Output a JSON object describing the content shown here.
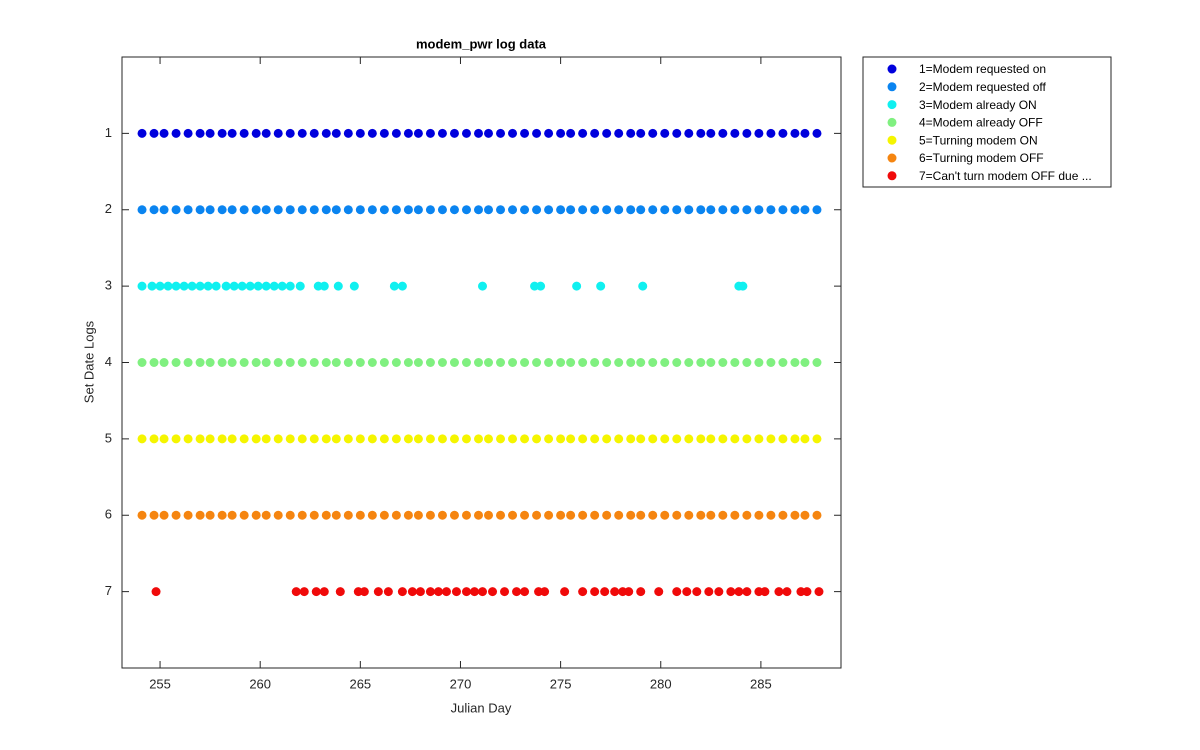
{
  "chart_data": {
    "type": "scatter",
    "title": "modem_pwr log data",
    "x_label": "Julian Day",
    "y_label": "Set Date Logs",
    "xlim": [
      253.1,
      289
    ],
    "xticks": [
      255,
      260,
      265,
      270,
      275,
      280,
      285
    ],
    "ylim": [
      0,
      8
    ],
    "yticks": [
      1,
      2,
      3,
      4,
      5,
      6,
      7
    ],
    "y_reverse": true,
    "legend": "outside-right",
    "series": [
      {
        "name": "1=Modem requested on",
        "color": "#0000dd",
        "x": [
          254.1,
          254.7,
          255.2,
          255.8,
          256.4,
          257.0,
          257.5,
          258.1,
          258.6,
          259.2,
          259.8,
          260.3,
          260.9,
          261.5,
          262.1,
          262.7,
          263.3,
          263.8,
          264.4,
          265.0,
          265.6,
          266.2,
          266.8,
          267.4,
          267.9,
          268.5,
          269.1,
          269.7,
          270.3,
          270.9,
          271.4,
          272.0,
          272.6,
          273.2,
          273.8,
          274.4,
          275.0,
          275.5,
          276.1,
          276.7,
          277.3,
          277.9,
          278.5,
          279.0,
          279.6,
          280.2,
          280.8,
          281.4,
          282.0,
          282.5,
          283.1,
          283.7,
          284.3,
          284.9,
          285.5,
          286.1,
          286.7,
          287.2,
          287.8
        ],
        "values": [
          1,
          1,
          1,
          1,
          1,
          1,
          1,
          1,
          1,
          1,
          1,
          1,
          1,
          1,
          1,
          1,
          1,
          1,
          1,
          1,
          1,
          1,
          1,
          1,
          1,
          1,
          1,
          1,
          1,
          1,
          1,
          1,
          1,
          1,
          1,
          1,
          1,
          1,
          1,
          1,
          1,
          1,
          1,
          1,
          1,
          1,
          1,
          1,
          1,
          1,
          1,
          1,
          1,
          1,
          1,
          1,
          1,
          1,
          1
        ]
      },
      {
        "name": "2=Modem requested off",
        "color": "#0a84f0",
        "x": [
          254.1,
          254.7,
          255.2,
          255.8,
          256.4,
          257.0,
          257.5,
          258.1,
          258.6,
          259.2,
          259.8,
          260.3,
          260.9,
          261.5,
          262.1,
          262.7,
          263.3,
          263.8,
          264.4,
          265.0,
          265.6,
          266.2,
          266.8,
          267.4,
          267.9,
          268.5,
          269.1,
          269.7,
          270.3,
          270.9,
          271.4,
          272.0,
          272.6,
          273.2,
          273.8,
          274.4,
          275.0,
          275.5,
          276.1,
          276.7,
          277.3,
          277.9,
          278.5,
          279.0,
          279.6,
          280.2,
          280.8,
          281.4,
          282.0,
          282.5,
          283.1,
          283.7,
          284.3,
          284.9,
          285.5,
          286.1,
          286.7,
          287.2,
          287.8
        ],
        "values": [
          2,
          2,
          2,
          2,
          2,
          2,
          2,
          2,
          2,
          2,
          2,
          2,
          2,
          2,
          2,
          2,
          2,
          2,
          2,
          2,
          2,
          2,
          2,
          2,
          2,
          2,
          2,
          2,
          2,
          2,
          2,
          2,
          2,
          2,
          2,
          2,
          2,
          2,
          2,
          2,
          2,
          2,
          2,
          2,
          2,
          2,
          2,
          2,
          2,
          2,
          2,
          2,
          2,
          2,
          2,
          2,
          2,
          2,
          2
        ]
      },
      {
        "name": "3=Modem already ON",
        "color": "#10f0f0",
        "x": [
          254.1,
          254.6,
          255.0,
          255.4,
          255.8,
          256.2,
          256.6,
          257.0,
          257.4,
          257.8,
          258.3,
          258.7,
          259.1,
          259.5,
          259.9,
          260.3,
          260.7,
          261.1,
          261.5,
          262.0,
          262.9,
          263.2,
          263.9,
          264.7,
          266.7,
          267.1,
          271.1,
          273.7,
          274.0,
          275.8,
          277.0,
          279.1,
          283.9,
          284.1
        ],
        "values": [
          3,
          3,
          3,
          3,
          3,
          3,
          3,
          3,
          3,
          3,
          3,
          3,
          3,
          3,
          3,
          3,
          3,
          3,
          3,
          3,
          3,
          3,
          3,
          3,
          3,
          3,
          3,
          3,
          3,
          3,
          3,
          3,
          3,
          3
        ]
      },
      {
        "name": "4=Modem already OFF",
        "color": "#80f080",
        "x": [
          254.1,
          254.7,
          255.2,
          255.8,
          256.4,
          257.0,
          257.5,
          258.1,
          258.6,
          259.2,
          259.8,
          260.3,
          260.9,
          261.5,
          262.1,
          262.7,
          263.3,
          263.8,
          264.4,
          265.0,
          265.6,
          266.2,
          266.8,
          267.4,
          267.9,
          268.5,
          269.1,
          269.7,
          270.3,
          270.9,
          271.4,
          272.0,
          272.6,
          273.2,
          273.8,
          274.4,
          275.0,
          275.5,
          276.1,
          276.7,
          277.3,
          277.9,
          278.5,
          279.0,
          279.6,
          280.2,
          280.8,
          281.4,
          282.0,
          282.5,
          283.1,
          283.7,
          284.3,
          284.9,
          285.5,
          286.1,
          286.7,
          287.2,
          287.8
        ],
        "values": [
          4,
          4,
          4,
          4,
          4,
          4,
          4,
          4,
          4,
          4,
          4,
          4,
          4,
          4,
          4,
          4,
          4,
          4,
          4,
          4,
          4,
          4,
          4,
          4,
          4,
          4,
          4,
          4,
          4,
          4,
          4,
          4,
          4,
          4,
          4,
          4,
          4,
          4,
          4,
          4,
          4,
          4,
          4,
          4,
          4,
          4,
          4,
          4,
          4,
          4,
          4,
          4,
          4,
          4,
          4,
          4,
          4,
          4,
          4
        ]
      },
      {
        "name": "5=Turning modem ON",
        "color": "#f5f500",
        "x": [
          254.1,
          254.7,
          255.2,
          255.8,
          256.4,
          257.0,
          257.5,
          258.1,
          258.6,
          259.2,
          259.8,
          260.3,
          260.9,
          261.5,
          262.1,
          262.7,
          263.3,
          263.8,
          264.4,
          265.0,
          265.6,
          266.2,
          266.8,
          267.4,
          267.9,
          268.5,
          269.1,
          269.7,
          270.3,
          270.9,
          271.4,
          272.0,
          272.6,
          273.2,
          273.8,
          274.4,
          275.0,
          275.5,
          276.1,
          276.7,
          277.3,
          277.9,
          278.5,
          279.0,
          279.6,
          280.2,
          280.8,
          281.4,
          282.0,
          282.5,
          283.1,
          283.7,
          284.3,
          284.9,
          285.5,
          286.1,
          286.7,
          287.2,
          287.8
        ],
        "values": [
          5,
          5,
          5,
          5,
          5,
          5,
          5,
          5,
          5,
          5,
          5,
          5,
          5,
          5,
          5,
          5,
          5,
          5,
          5,
          5,
          5,
          5,
          5,
          5,
          5,
          5,
          5,
          5,
          5,
          5,
          5,
          5,
          5,
          5,
          5,
          5,
          5,
          5,
          5,
          5,
          5,
          5,
          5,
          5,
          5,
          5,
          5,
          5,
          5,
          5,
          5,
          5,
          5,
          5,
          5,
          5,
          5,
          5,
          5
        ]
      },
      {
        "name": "6=Turning modem OFF",
        "color": "#f58510",
        "x": [
          254.1,
          254.7,
          255.2,
          255.8,
          256.4,
          257.0,
          257.5,
          258.1,
          258.6,
          259.2,
          259.8,
          260.3,
          260.9,
          261.5,
          262.1,
          262.7,
          263.3,
          263.8,
          264.4,
          265.0,
          265.6,
          266.2,
          266.8,
          267.4,
          267.9,
          268.5,
          269.1,
          269.7,
          270.3,
          270.9,
          271.4,
          272.0,
          272.6,
          273.2,
          273.8,
          274.4,
          275.0,
          275.5,
          276.1,
          276.7,
          277.3,
          277.9,
          278.5,
          279.0,
          279.6,
          280.2,
          280.8,
          281.4,
          282.0,
          282.5,
          283.1,
          283.7,
          284.3,
          284.9,
          285.5,
          286.1,
          286.7,
          287.2,
          287.8
        ],
        "values": [
          6,
          6,
          6,
          6,
          6,
          6,
          6,
          6,
          6,
          6,
          6,
          6,
          6,
          6,
          6,
          6,
          6,
          6,
          6,
          6,
          6,
          6,
          6,
          6,
          6,
          6,
          6,
          6,
          6,
          6,
          6,
          6,
          6,
          6,
          6,
          6,
          6,
          6,
          6,
          6,
          6,
          6,
          6,
          6,
          6,
          6,
          6,
          6,
          6,
          6,
          6,
          6,
          6,
          6,
          6,
          6,
          6,
          6,
          6
        ]
      },
      {
        "name": "7=Can't turn modem OFF due  ...",
        "color": "#f00a0a",
        "x": [
          254.8,
          261.8,
          262.2,
          262.8,
          263.2,
          264.0,
          264.9,
          265.2,
          265.9,
          266.4,
          267.1,
          267.6,
          268.0,
          268.5,
          268.9,
          269.3,
          269.8,
          270.3,
          270.7,
          271.1,
          271.6,
          272.2,
          272.8,
          273.2,
          273.9,
          274.2,
          275.2,
          276.1,
          276.7,
          277.2,
          277.7,
          278.1,
          278.4,
          279.0,
          279.9,
          280.8,
          281.3,
          281.8,
          282.4,
          282.9,
          283.5,
          283.9,
          284.3,
          284.9,
          285.2,
          285.9,
          286.3,
          287.0,
          287.3,
          287.9
        ],
        "values": [
          7,
          7,
          7,
          7,
          7,
          7,
          7,
          7,
          7,
          7,
          7,
          7,
          7,
          7,
          7,
          7,
          7,
          7,
          7,
          7,
          7,
          7,
          7,
          7,
          7,
          7,
          7,
          7,
          7,
          7,
          7,
          7,
          7,
          7,
          7,
          7,
          7,
          7,
          7,
          7,
          7,
          7,
          7,
          7,
          7,
          7,
          7,
          7,
          7,
          7
        ]
      }
    ]
  }
}
